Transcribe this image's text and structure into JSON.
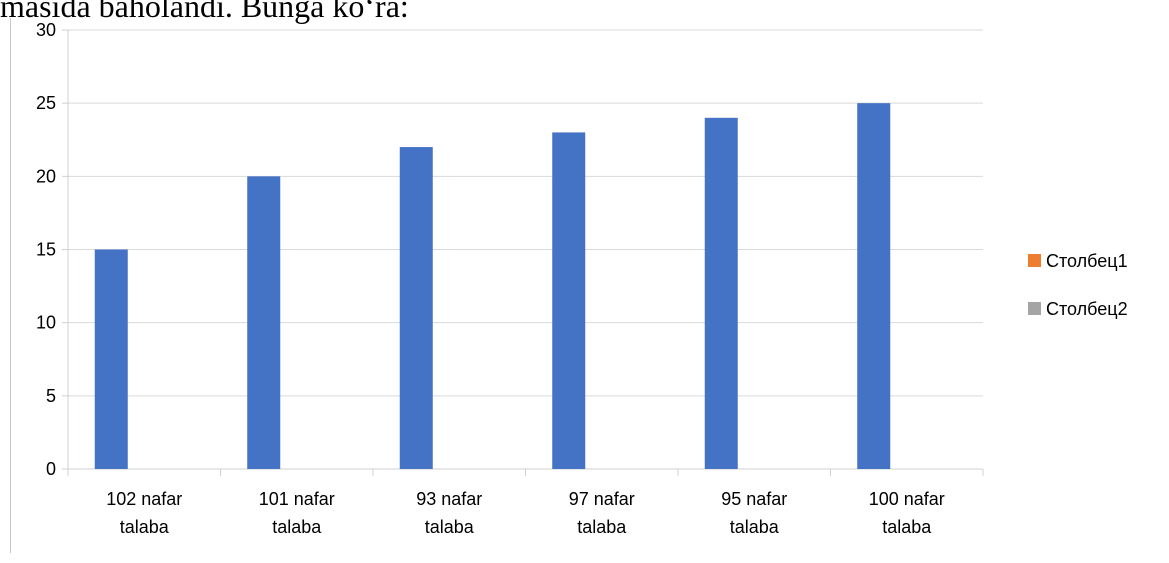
{
  "page_text": {
    "header": "masida baholandi. Bunga ko‘ra:"
  },
  "chart_data": {
    "type": "bar",
    "categories": [
      [
        "102 nafar",
        "talaba"
      ],
      [
        "101 nafar",
        "talaba"
      ],
      [
        "93 nafar",
        "talaba"
      ],
      [
        "97 nafar",
        "talaba"
      ],
      [
        "95 nafar",
        "talaba"
      ],
      [
        "100 nafar",
        "talaba"
      ]
    ],
    "series": [
      {
        "values": [
          15,
          20,
          22,
          23,
          24,
          25
        ],
        "color": "#4472c4"
      },
      {
        "name": "Столбец1",
        "values": [
          0,
          0,
          0,
          0,
          0,
          0
        ],
        "color": "#ed7d31"
      },
      {
        "name": "Столбец2",
        "values": [
          0,
          0,
          0,
          0,
          0,
          0
        ],
        "color": "#a5a5a5"
      }
    ],
    "y_ticks": [
      0,
      5,
      10,
      15,
      20,
      25,
      30
    ],
    "ylim": [
      0,
      30
    ],
    "grid": true,
    "legend": "right",
    "gridline_color": "#d9d9d9"
  }
}
